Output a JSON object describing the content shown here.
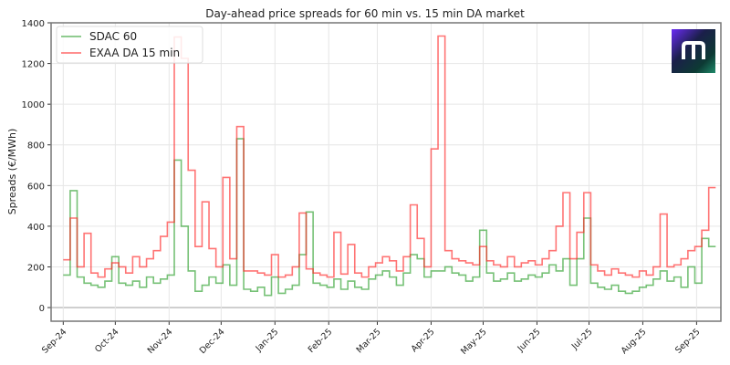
{
  "chart_data": {
    "type": "line",
    "title": "Day-ahead price spreads for 60 min vs. 15 min DA market",
    "xlabel": "",
    "ylabel": "Spreads (€/MWh)",
    "ylim": [
      -67,
      1400
    ],
    "yticks": [
      0,
      200,
      400,
      600,
      800,
      1000,
      1200,
      1400
    ],
    "xlim_days_from_start": [
      -7,
      379
    ],
    "x_start": "2024-09-01",
    "x_step_days": 4,
    "xticks": [
      {
        "label": "Sep-24",
        "day": 0
      },
      {
        "label": "Oct-24",
        "day": 30
      },
      {
        "label": "Nov-24",
        "day": 61
      },
      {
        "label": "Dec-24",
        "day": 91
      },
      {
        "label": "Jan-25",
        "day": 122
      },
      {
        "label": "Feb-25",
        "day": 153
      },
      {
        "label": "Mar-25",
        "day": 181
      },
      {
        "label": "Apr-25",
        "day": 212
      },
      {
        "label": "May-25",
        "day": 242
      },
      {
        "label": "Jun-25",
        "day": 273
      },
      {
        "label": "Jul-25",
        "day": 303
      },
      {
        "label": "Aug-25",
        "day": 334
      },
      {
        "label": "Sep-25",
        "day": 365
      }
    ],
    "grid": true,
    "legend_position": "top-left",
    "series": [
      {
        "name": "SDAC 60",
        "color": "#2ca02c",
        "values": [
          160,
          575,
          150,
          120,
          110,
          100,
          130,
          250,
          120,
          110,
          130,
          100,
          150,
          120,
          140,
          160,
          725,
          400,
          180,
          80,
          110,
          150,
          120,
          210,
          110,
          830,
          90,
          80,
          100,
          60,
          150,
          70,
          90,
          110,
          260,
          470,
          120,
          110,
          100,
          140,
          90,
          130,
          100,
          90,
          140,
          160,
          180,
          150,
          110,
          170,
          260,
          240,
          150,
          180,
          180,
          200,
          170,
          160,
          130,
          150,
          380,
          170,
          130,
          140,
          170,
          130,
          140,
          160,
          150,
          170,
          210,
          180,
          240,
          110,
          240,
          440,
          120,
          100,
          90,
          110,
          80,
          70,
          80,
          100,
          110,
          140,
          180,
          130,
          150,
          100,
          200,
          120,
          340,
          300
        ]
      },
      {
        "name": "EXAA DA 15 min",
        "color": "#ff2a2a",
        "values": [
          235,
          440,
          200,
          365,
          170,
          150,
          190,
          220,
          200,
          170,
          250,
          200,
          240,
          280,
          350,
          420,
          1330,
          1225,
          675,
          300,
          520,
          290,
          200,
          640,
          240,
          890,
          180,
          180,
          170,
          160,
          260,
          150,
          160,
          200,
          465,
          190,
          170,
          160,
          150,
          370,
          165,
          310,
          170,
          150,
          200,
          220,
          250,
          230,
          180,
          250,
          505,
          340,
          200,
          780,
          1335,
          280,
          240,
          230,
          220,
          210,
          300,
          230,
          210,
          200,
          250,
          200,
          220,
          230,
          210,
          240,
          280,
          400,
          565,
          240,
          370,
          565,
          210,
          180,
          160,
          190,
          170,
          160,
          150,
          180,
          160,
          200,
          460,
          200,
          210,
          240,
          280,
          300,
          380,
          590
        ]
      }
    ]
  },
  "logo": {
    "letter": "m"
  }
}
